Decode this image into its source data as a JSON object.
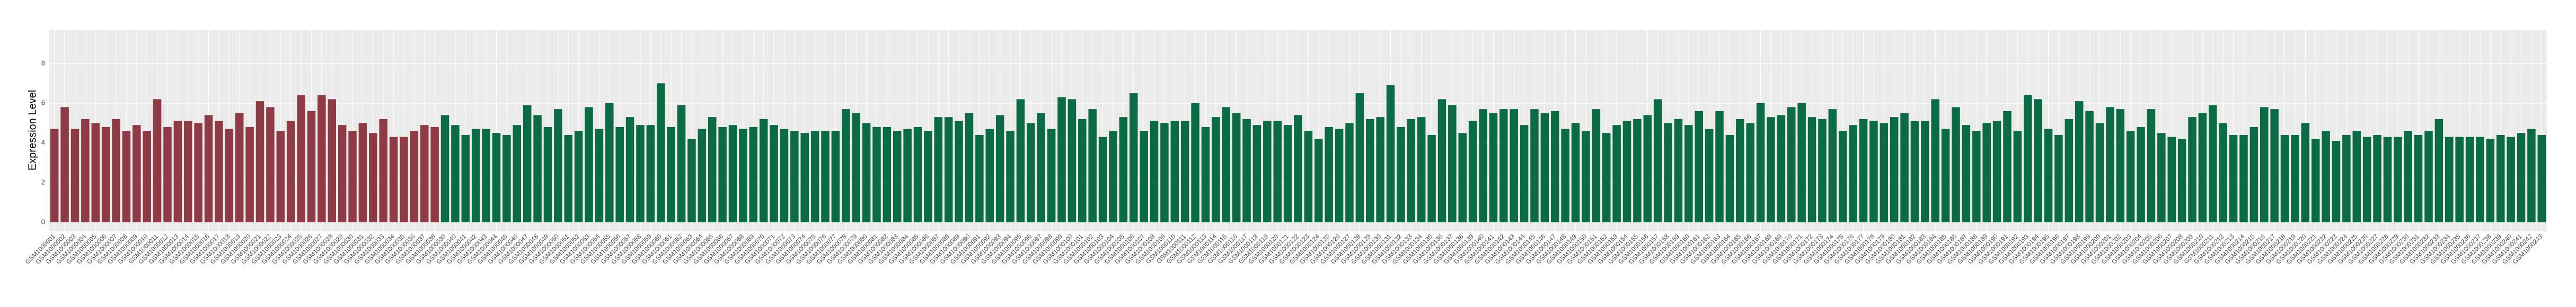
{
  "chart_data": {
    "type": "bar",
    "y_label": "Expression Level",
    "ylim": [
      -0.45,
      9.7
    ],
    "yticks": [
      0,
      2,
      4,
      6,
      8
    ],
    "grid": true,
    "categories": [
      "GSM1000001",
      "GSM1000002",
      "GSM1000003",
      "GSM1000004",
      "GSM1000005",
      "GSM1000006",
      "GSM1000007",
      "GSM1000008",
      "GSM1000009",
      "GSM1000010",
      "GSM1000011",
      "GSM1000012",
      "GSM1000013",
      "GSM1000014",
      "GSM1000015",
      "GSM1000016",
      "GSM1000017",
      "GSM1000018",
      "GSM1000019",
      "GSM1000020",
      "GSM1000021",
      "GSM1000022",
      "GSM1000023",
      "GSM1000024",
      "GSM1000025",
      "GSM1000026",
      "GSM1000027",
      "GSM1000028",
      "GSM1000029",
      "GSM1000030",
      "GSM1000031",
      "GSM1000032",
      "GSM1000033",
      "GSM1000034",
      "GSM1000035",
      "GSM1000036",
      "GSM1000037",
      "GSM1000038",
      "GSM1000039",
      "GSM1000040",
      "GSM1000041",
      "GSM1000042",
      "GSM1000043",
      "GSM1000044",
      "GSM1000045",
      "GSM1000046",
      "GSM1000047",
      "GSM1000048",
      "GSM1000049",
      "GSM1000050",
      "GSM1000051",
      "GSM1000052",
      "GSM1000053",
      "GSM1000054",
      "GSM1000055",
      "GSM1000056",
      "GSM1000057",
      "GSM1000058",
      "GSM1000059",
      "GSM1000060",
      "GSM1000061",
      "GSM1000062",
      "GSM1000063",
      "GSM1000064",
      "GSM1000065",
      "GSM1000066",
      "GSM1000067",
      "GSM1000068",
      "GSM1000069",
      "GSM1000070",
      "GSM1000071",
      "GSM1000072",
      "GSM1000073",
      "GSM1000074",
      "GSM1000075",
      "GSM1000076",
      "GSM1000077",
      "GSM1000078",
      "GSM1000079",
      "GSM1000080",
      "GSM1000081",
      "GSM1000082",
      "GSM1000083",
      "GSM1000084",
      "GSM1000085",
      "GSM1000086",
      "GSM1000087",
      "GSM1000088",
      "GSM1000089",
      "GSM1000090",
      "GSM1000091",
      "GSM1000092",
      "GSM1000093",
      "GSM1000094",
      "GSM1000095",
      "GSM1000096",
      "GSM1000097",
      "GSM1000098",
      "GSM1000099",
      "GSM1000100",
      "GSM1000101",
      "GSM1000102",
      "GSM1000103",
      "GSM1000104",
      "GSM1000105",
      "GSM1000106",
      "GSM1000107",
      "GSM1000108",
      "GSM1000109",
      "GSM1000110",
      "GSM1000111",
      "GSM1000112",
      "GSM1000113",
      "GSM1000114",
      "GSM1000115",
      "GSM1000116",
      "GSM1000117",
      "GSM1000118",
      "GSM1000119",
      "GSM1000120",
      "GSM1000121",
      "GSM1000122",
      "GSM1000123",
      "GSM1000124",
      "GSM1000125",
      "GSM1000126",
      "GSM1000127",
      "GSM1000128",
      "GSM1000129",
      "GSM1000130",
      "GSM1000131",
      "GSM1000132",
      "GSM1000133",
      "GSM1000134",
      "GSM1000135",
      "GSM1000136",
      "GSM1000137",
      "GSM1000138",
      "GSM1000139",
      "GSM1000140",
      "GSM1000141",
      "GSM1000142",
      "GSM1000143",
      "GSM1000144",
      "GSM1000145",
      "GSM1000146",
      "GSM1000147",
      "GSM1000148",
      "GSM1000149",
      "GSM1000150",
      "GSM1000151",
      "GSM1000152",
      "GSM1000153",
      "GSM1000154",
      "GSM1000155",
      "GSM1000156",
      "GSM1000157",
      "GSM1000158",
      "GSM1000159",
      "GSM1000160",
      "GSM1000161",
      "GSM1000162",
      "GSM1000163",
      "GSM1000164",
      "GSM1000165",
      "GSM1000166",
      "GSM1000167",
      "GSM1000168",
      "GSM1000169",
      "GSM1000170",
      "GSM1000171",
      "GSM1000172",
      "GSM1000173",
      "GSM1000174",
      "GSM1000175",
      "GSM1000176",
      "GSM1000177",
      "GSM1000178",
      "GSM1000179",
      "GSM1000180",
      "GSM1000181",
      "GSM1000182",
      "GSM1000183",
      "GSM1000184",
      "GSM1000185",
      "GSM1000186",
      "GSM1000187",
      "GSM1000188",
      "GSM1000189",
      "GSM1000190",
      "GSM1000191",
      "GSM1000192",
      "GSM1000193",
      "GSM1000194",
      "GSM1000195",
      "GSM1000196",
      "GSM1000197",
      "GSM1000198",
      "GSM1000199",
      "GSM1000200",
      "GSM1000201",
      "GSM1000202",
      "GSM1000203",
      "GSM1000204",
      "GSM1000205",
      "GSM1000206",
      "GSM1000207",
      "GSM1000208",
      "GSM1000209",
      "GSM1000210",
      "GSM1000211",
      "GSM1000212",
      "GSM1000213",
      "GSM1000214",
      "GSM1000215",
      "GSM1000216",
      "GSM1000217",
      "GSM1000218",
      "GSM1000219",
      "GSM1000220",
      "GSM1000221",
      "GSM1000222",
      "GSM1000223",
      "GSM1000224",
      "GSM1000225",
      "GSM1000226",
      "GSM1000227",
      "GSM1000228",
      "GSM1000229",
      "GSM1000230",
      "GSM1000231",
      "GSM1000232",
      "GSM1000233",
      "GSM1000234",
      "GSM1000235",
      "GSM1000236",
      "GSM1000237",
      "GSM1000238",
      "GSM1000239",
      "GSM1000240",
      "GSM1000241",
      "GSM1000242",
      "GSM1000243"
    ],
    "series": [
      {
        "color": "#8e3b46",
        "values": [
          4.7,
          5.8,
          4.7,
          5.2,
          5.0,
          4.8,
          5.2,
          4.6,
          4.9,
          4.6,
          6.2,
          4.8,
          5.1,
          5.1,
          5.0,
          5.4,
          5.1,
          4.7,
          5.5,
          4.8,
          6.1,
          5.8,
          4.6,
          5.1,
          6.4,
          5.6,
          6.4,
          6.2,
          4.9,
          4.6,
          5.0,
          4.5,
          5.2,
          4.3,
          4.3,
          4.6,
          4.9,
          4.8,
          null,
          null,
          null,
          null,
          null,
          null,
          null,
          null,
          null,
          null,
          null,
          null,
          null,
          null,
          null,
          null,
          null,
          null,
          null,
          null,
          null,
          null,
          null,
          null,
          null,
          null,
          null,
          null,
          null,
          null,
          null,
          null,
          null,
          null,
          null,
          null,
          null,
          null,
          null,
          null,
          null,
          null,
          null,
          null,
          null,
          null,
          null,
          null,
          null,
          null,
          null,
          null,
          null,
          null,
          null,
          null,
          null,
          null,
          null,
          null,
          null,
          null,
          null,
          null,
          null,
          null,
          null,
          null,
          null,
          null,
          null,
          null,
          null,
          null,
          null,
          null,
          null,
          null,
          null,
          null,
          null,
          null,
          null,
          null,
          null,
          null,
          null,
          null,
          null,
          null,
          null,
          null,
          null,
          null,
          null,
          null,
          null,
          null,
          null,
          null,
          null,
          null,
          null,
          null,
          null,
          null,
          null,
          null,
          null,
          null,
          null,
          null,
          null,
          null,
          null,
          null,
          null,
          null,
          null,
          null,
          null,
          null,
          null,
          null,
          null,
          null,
          null,
          null,
          null,
          null,
          null,
          null,
          null,
          null,
          null,
          null,
          null,
          null,
          null,
          null,
          null,
          null,
          null,
          null,
          null,
          null,
          null,
          null,
          null,
          null,
          null,
          null,
          null,
          null,
          null,
          null,
          null,
          null,
          null,
          null,
          null,
          null,
          null,
          null,
          null,
          null,
          null,
          null,
          null,
          null,
          null,
          null,
          null,
          null,
          null,
          null,
          null,
          null,
          null,
          null,
          null,
          null,
          null,
          null,
          null,
          null,
          null,
          null,
          null,
          null,
          null,
          null,
          null,
          null,
          null,
          null,
          null,
          null,
          null,
          null,
          null,
          null,
          null,
          null,
          null
        ]
      },
      {
        "color": "#0b6b45",
        "values": [
          null,
          null,
          null,
          null,
          null,
          null,
          null,
          null,
          null,
          null,
          null,
          null,
          null,
          null,
          null,
          null,
          null,
          null,
          null,
          null,
          null,
          null,
          null,
          null,
          null,
          null,
          null,
          null,
          null,
          null,
          null,
          null,
          null,
          null,
          null,
          null,
          null,
          null,
          5.4,
          4.9,
          4.4,
          4.7,
          4.7,
          4.5,
          4.4,
          4.9,
          5.9,
          5.4,
          4.8,
          5.7,
          4.4,
          4.6,
          5.8,
          4.7,
          6.0,
          4.8,
          5.3,
          4.9,
          4.9,
          7.0,
          4.8,
          5.9,
          4.2,
          4.7,
          5.3,
          4.8,
          4.9,
          4.7,
          4.8,
          5.2,
          4.9,
          4.7,
          4.6,
          4.5,
          4.6,
          4.6,
          4.6,
          5.7,
          5.5,
          5.0,
          4.8,
          4.8,
          4.6,
          4.7,
          4.8,
          4.6,
          5.3,
          5.3,
          5.1,
          5.5,
          4.4,
          4.7,
          5.4,
          4.6,
          6.2,
          5.0,
          5.5,
          4.7,
          6.3,
          6.2,
          5.2,
          5.7,
          4.3,
          4.6,
          5.3,
          6.5,
          4.6,
          5.1,
          5.0,
          5.1,
          5.1,
          6.0,
          4.8,
          5.3,
          5.8,
          5.5,
          5.2,
          4.9,
          5.1,
          5.1,
          4.9,
          5.4,
          4.6,
          4.2,
          4.8,
          4.7,
          5.0,
          6.5,
          5.2,
          5.3,
          6.9,
          4.8,
          5.2,
          5.3,
          4.4,
          6.2,
          5.9,
          4.5,
          5.1,
          5.7,
          5.5,
          5.7,
          5.7,
          4.9,
          5.7,
          5.5,
          5.6,
          4.7,
          5.0,
          4.6,
          5.7,
          4.5,
          4.9,
          5.1,
          5.2,
          5.4,
          6.2,
          5.0,
          5.2,
          4.9,
          5.6,
          4.7,
          5.6,
          4.4,
          5.2,
          5.0,
          6.0,
          5.3,
          5.4,
          5.8,
          6.0,
          5.3,
          5.2,
          5.7,
          4.6,
          4.9,
          5.2,
          5.1,
          5.0,
          5.3,
          5.5,
          5.1,
          5.1,
          6.2,
          4.7,
          5.8,
          4.9,
          4.6,
          5.0,
          5.1,
          5.6,
          4.6,
          6.4,
          6.2,
          4.7,
          4.4,
          5.2,
          6.1,
          5.6,
          5.0,
          5.8,
          5.7,
          4.6,
          4.8,
          5.7,
          4.5,
          4.3,
          4.2,
          5.3,
          5.5,
          5.9,
          5.0,
          4.4,
          4.4,
          4.8,
          5.8,
          5.7,
          4.4,
          4.4,
          5.0,
          4.2,
          4.6,
          4.1,
          4.4,
          4.6,
          4.3,
          4.4,
          4.3,
          4.3,
          4.6,
          4.4,
          4.6,
          5.2,
          4.3,
          4.3,
          4.3,
          4.3,
          4.2,
          4.4,
          4.3,
          4.5,
          4.7,
          4.4
        ]
      }
    ]
  }
}
